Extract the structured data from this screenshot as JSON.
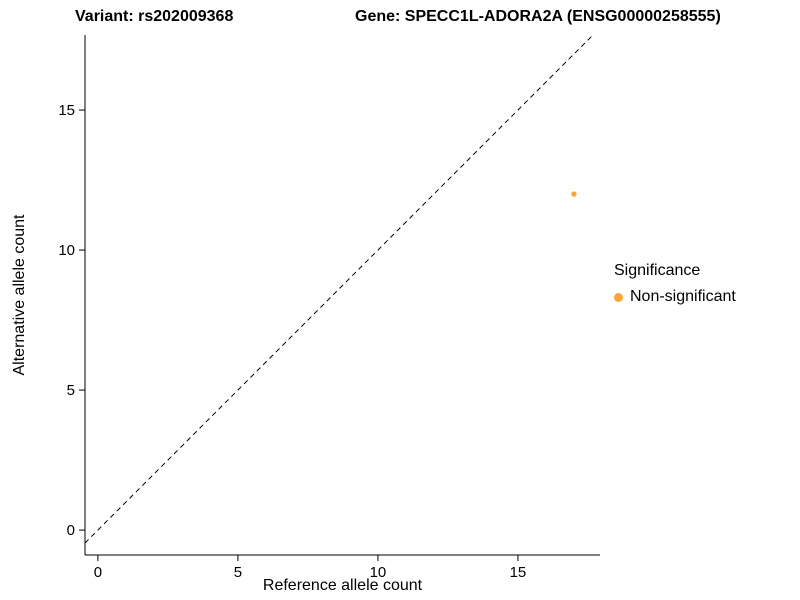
{
  "chart_data": {
    "type": "scatter",
    "title_left": "Variant: rs202009368",
    "title_right": "Gene: SPECC1L-ADORA2A (ENSG00000258555)",
    "xlabel": "Reference allele count",
    "ylabel": "Alternative allele count",
    "xlim": [
      -0.46,
      17.93
    ],
    "ylim": [
      -0.89,
      17.68
    ],
    "x_ticks": [
      0,
      5,
      10,
      15
    ],
    "y_ticks": [
      0,
      5,
      10,
      15
    ],
    "grid": false,
    "axis_color": "#000000",
    "reference_line": {
      "type": "identity",
      "equation": "y = x",
      "style": "dashed",
      "color": "#000000"
    },
    "legend": {
      "title": "Significance",
      "position": "right",
      "entries": [
        {
          "label": "Non-significant",
          "color": "#FAA43A"
        }
      ]
    },
    "series": [
      {
        "name": "Non-significant",
        "color": "#FAA43A",
        "points": [
          {
            "x": 17,
            "y": 12
          }
        ]
      }
    ]
  }
}
